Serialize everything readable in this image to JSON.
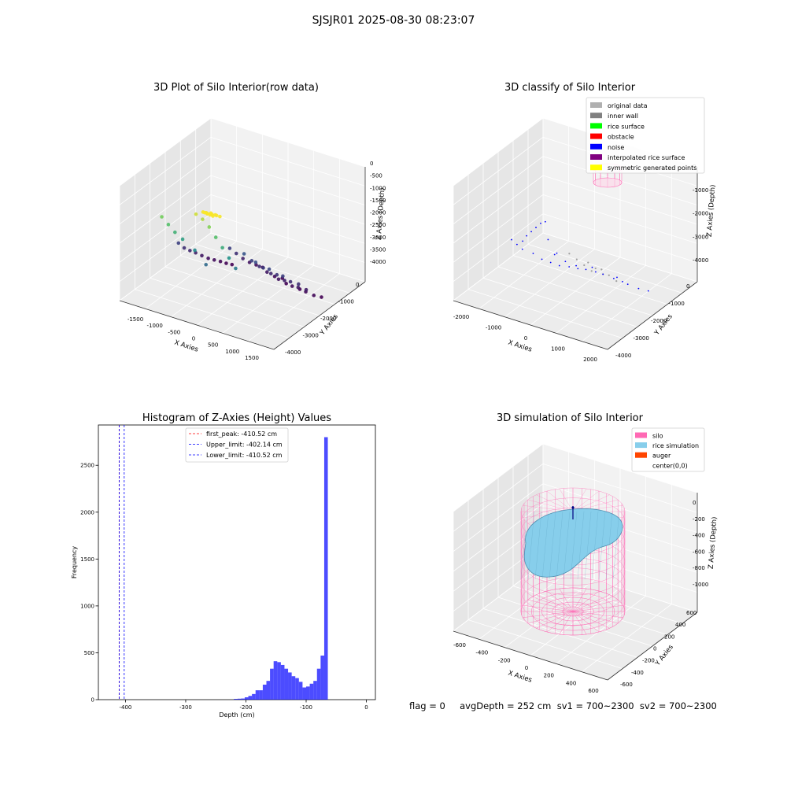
{
  "figure": {
    "suptitle": "SJSJR01 2025-08-30 08:23:07",
    "status_text": "flag = 0     avgDepth = 252 cm  sv1 = 700~2300  sv2 = 700~2300"
  },
  "chart_data": [
    {
      "type": "scatter",
      "title": "3D Plot of Silo Interior(row data)",
      "xlabel": "X Axies",
      "ylabel": "Y Axies",
      "zlabel": "Z Axies (Depth)",
      "xticks": [
        "-1500",
        "-1000",
        "-500",
        "0",
        "500",
        "1000",
        "1500"
      ],
      "yticks": [
        "0",
        "-1000",
        "-2000",
        "-3000",
        "-4000"
      ],
      "zticks": [
        "0",
        "-500",
        "-1000",
        "-1500",
        "-2000",
        "-2500",
        "-3000",
        "-3500",
        "-4000"
      ],
      "xlim": [
        -1700,
        1700
      ],
      "ylim": [
        -4200,
        200
      ],
      "zlim": [
        -4200,
        200
      ],
      "colormap": "viridis",
      "color_by": "z",
      "series": [
        {
          "points": [
            [
              -1500,
              -2200,
              -3300
            ],
            [
              -1420,
              -2300,
              -3500
            ],
            [
              -1330,
              -2380,
              -3600
            ],
            [
              -1250,
              -2480,
              -3700
            ],
            [
              -1150,
              -2560,
              -3800
            ],
            [
              -1050,
              -2650,
              -3900
            ],
            [
              -950,
              -2720,
              -3950
            ],
            [
              -850,
              -2800,
              -4000
            ],
            [
              -750,
              -2860,
              -4050
            ],
            [
              -650,
              -2920,
              -4080
            ]
          ]
        },
        {
          "points": [
            [
              -600,
              -2700,
              -3300
            ],
            [
              -500,
              -2800,
              -3500
            ],
            [
              -400,
              -2900,
              -3700
            ],
            [
              -300,
              -3000,
              -3850
            ],
            [
              -200,
              -3100,
              -3950
            ],
            [
              -100,
              -3200,
              -4050
            ]
          ]
        },
        {
          "points": [
            [
              -100,
              -2300,
              -3000
            ],
            [
              0,
              -2450,
              -3300
            ],
            [
              100,
              -2600,
              -3550
            ],
            [
              200,
              -2750,
              -3800
            ],
            [
              300,
              -2900,
              -4000
            ],
            [
              400,
              -3050,
              -4100
            ]
          ]
        },
        {
          "points": [
            [
              200,
              -2200,
              -3100
            ],
            [
              300,
              -2350,
              -3350
            ],
            [
              400,
              -2500,
              -3600
            ],
            [
              500,
              -2650,
              -3850
            ],
            [
              600,
              -2800,
              -4050
            ]
          ]
        },
        {
          "points": [
            [
              500,
              -2200,
              -3200
            ],
            [
              600,
              -2350,
              -3450
            ],
            [
              700,
              -2500,
              -3700
            ],
            [
              800,
              -2650,
              -3950
            ],
            [
              900,
              -2800,
              -4100
            ]
          ]
        },
        {
          "points": [
            [
              800,
              -2200,
              -3300
            ],
            [
              900,
              -2350,
              -3550
            ],
            [
              1000,
              -2500,
              -3800
            ],
            [
              1100,
              -2650,
              -4000
            ]
          ]
        },
        {
          "points": [
            [
              1100,
              -2300,
              -3500
            ],
            [
              1200,
              -2450,
              -3750
            ],
            [
              1300,
              -2600,
              -4000
            ],
            [
              1400,
              -2750,
              -4100
            ]
          ]
        },
        {
          "points": [
            [
              -900,
              -400,
              -1200
            ],
            [
              -800,
              -500,
              -1500
            ],
            [
              -700,
              -650,
              -1800
            ],
            [
              -500,
              -800,
              -2200
            ],
            [
              -300,
              -900,
              -2700
            ],
            [
              -1000,
              -300,
              -900
            ]
          ]
        },
        {
          "points": [
            [
              -200,
              -200,
              -300
            ],
            [
              -100,
              -300,
              -500
            ],
            [
              0,
              -400,
              -800
            ],
            [
              100,
              -500,
              -1200
            ],
            [
              200,
              -600,
              -1600
            ],
            [
              300,
              -700,
              -2000
            ],
            [
              400,
              -800,
              -2400
            ]
          ]
        },
        {
          "points": [
            [
              0,
              -100,
              -50
            ],
            [
              50,
              -150,
              -80
            ],
            [
              100,
              -100,
              -60
            ],
            [
              150,
              -150,
              -40
            ],
            [
              200,
              -100,
              -30
            ],
            [
              250,
              -150,
              -50
            ],
            [
              300,
              -100,
              -20
            ],
            [
              350,
              -150,
              -60
            ],
            [
              60,
              -50,
              -10
            ],
            [
              120,
              -50,
              -20
            ],
            [
              180,
              -50,
              -30
            ],
            [
              240,
              -50,
              -40
            ]
          ]
        }
      ]
    },
    {
      "type": "scatter",
      "title": "3D classify of Silo Interior",
      "xlabel": "X Axies",
      "ylabel": "Y Axies",
      "zlabel": "Z Axies (Depth)",
      "xticks": [
        "-2000",
        "-1000",
        "0",
        "1000",
        "2000"
      ],
      "yticks": [
        "0",
        "-1000",
        "-2000",
        "-3000",
        "-4000"
      ],
      "zticks": [
        "0",
        "-1000",
        "-2000",
        "-3000",
        "-4000"
      ],
      "xlim": [
        -2300,
        2300
      ],
      "ylim": [
        -4200,
        200
      ],
      "zlim": [
        -4200,
        200
      ],
      "legend_loc": "upper right",
      "legend": [
        {
          "label": "original data",
          "color": "#b0b0b0"
        },
        {
          "label": "inner wall",
          "color": "#808080"
        },
        {
          "label": "rice surface",
          "color": "#00ff00"
        },
        {
          "label": "obstacle",
          "color": "#ff0000"
        },
        {
          "label": "noise",
          "color": "#0000ff"
        },
        {
          "label": "interpolated rice surface",
          "color": "#800080"
        },
        {
          "label": "symmetric generated points",
          "color": "#ffff00"
        }
      ],
      "noise_points": [
        [
          -1900,
          -2000,
          -3000
        ],
        [
          -1800,
          -2100,
          -3200
        ],
        [
          -1700,
          -2200,
          -3400
        ],
        [
          -1500,
          -2400,
          -3600
        ],
        [
          -1300,
          -2500,
          -3800
        ],
        [
          -1100,
          -2600,
          -3900
        ],
        [
          -900,
          -2700,
          -4000
        ],
        [
          -700,
          -2850,
          -4050
        ],
        [
          -500,
          -2950,
          -4100
        ],
        [
          -800,
          -2300,
          -3300
        ],
        [
          -600,
          -2500,
          -3600
        ],
        [
          -400,
          -2700,
          -3800
        ],
        [
          -200,
          -2850,
          -3950
        ],
        [
          0,
          -3000,
          -4050
        ],
        [
          200,
          -2500,
          -3500
        ],
        [
          400,
          -2700,
          -3800
        ],
        [
          600,
          -2900,
          -4000
        ],
        [
          800,
          -3000,
          -4100
        ],
        [
          1000,
          -2400,
          -3500
        ],
        [
          1200,
          -2600,
          -3800
        ],
        [
          1400,
          -2800,
          -4000
        ],
        [
          1600,
          -2950,
          -4100
        ],
        [
          -600,
          -600,
          -1500
        ],
        [
          -400,
          -500,
          -1200
        ],
        [
          -200,
          -400,
          -900
        ],
        [
          0,
          -300,
          -600
        ],
        [
          200,
          -200,
          -400
        ],
        [
          -900,
          -900,
          -2000
        ],
        [
          300,
          -600,
          -1800
        ],
        [
          100,
          -500,
          -1300
        ]
      ],
      "gray_points": [
        [
          -300,
          -2200,
          -3000
        ],
        [
          -200,
          -2400,
          -3300
        ],
        [
          -100,
          -2600,
          -3600
        ],
        [
          0,
          -2800,
          -3900
        ],
        [
          200,
          -2300,
          -3200
        ],
        [
          300,
          -2500,
          -3500
        ],
        [
          400,
          -2700,
          -3800
        ],
        [
          600,
          -2300,
          -3300
        ],
        [
          700,
          -2500,
          -3600
        ],
        [
          800,
          -2700,
          -3900
        ]
      ],
      "silo_cylinder": {
        "center": [
          600,
          0
        ],
        "radius": 700,
        "z_top": 0,
        "z_bottom": -600
      }
    },
    {
      "type": "histogram",
      "title": "Histogram of Z-Axies (Height) Values",
      "xlabel": "Depth (cm)",
      "ylabel": "Frequency",
      "xticks": [
        -400,
        -300,
        -200,
        -100,
        0
      ],
      "yticks": [
        0,
        500,
        1000,
        1500,
        2000,
        2500
      ],
      "xlim": [
        -445,
        15
      ],
      "ylim": [
        0,
        2930
      ],
      "bar_color": "#0000ff",
      "bin_start": -220,
      "bin_width": 6,
      "counts": [
        8,
        10,
        12,
        25,
        40,
        60,
        100,
        100,
        160,
        200,
        330,
        410,
        400,
        370,
        330,
        290,
        250,
        230,
        190,
        130,
        140,
        170,
        200,
        330,
        470,
        2800
      ],
      "vlines": [
        {
          "label": "first_peak: -410.52 cm",
          "x": -410.52,
          "color": "#ff0000"
        },
        {
          "label": "Upper_limit: -402.14 cm",
          "x": -402.14,
          "color": "#0000ff"
        },
        {
          "label": "Lower_limit: -410.52 cm",
          "x": -410.52,
          "color": "#0000ff"
        }
      ],
      "legend_loc": "upper center"
    },
    {
      "type": "surface",
      "title": "3D simulation of Silo Interior",
      "xlabel": "X Axies",
      "ylabel": "Y Axies",
      "zlabel": "Z Axies (Depth)",
      "xticks": [
        "-600",
        "-400",
        "-200",
        "0",
        "200",
        "400",
        "600"
      ],
      "yticks": [
        "600",
        "400",
        "200",
        "0",
        "-200",
        "-400",
        "-600"
      ],
      "zticks": [
        "0",
        "-200",
        "-400",
        "-600",
        "-800",
        "-1000"
      ],
      "xlim": [
        -700,
        700
      ],
      "ylim": [
        -700,
        700
      ],
      "zlim": [
        -1150,
        100
      ],
      "legend_loc": "upper right",
      "legend": [
        {
          "label": "silo",
          "color": "#ff69b4"
        },
        {
          "label": "rice simulation",
          "color": "#87ceeb"
        },
        {
          "label": "auger",
          "color": "#ff4500"
        },
        {
          "label": "center(0,0)",
          "color": "#ffffff"
        }
      ],
      "silo": {
        "radius": 600,
        "z_top": 0,
        "z_bottom": -1100
      },
      "rice_surface_depth": -250
    }
  ]
}
